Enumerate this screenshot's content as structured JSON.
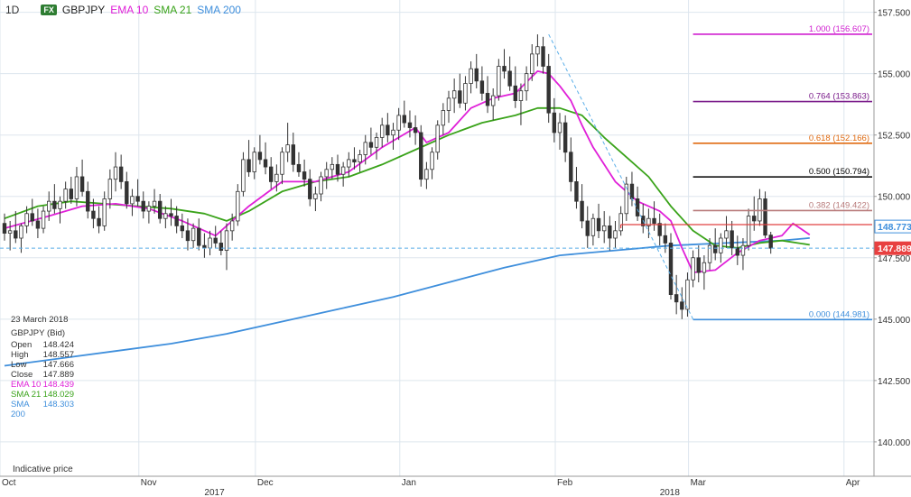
{
  "header": {
    "interval": "1D",
    "badge": "FX",
    "symbol": "GBPJPY",
    "ema10_label": "EMA 10",
    "sma21_label": "SMA 21",
    "sma200_label": "SMA 200"
  },
  "info_panel": {
    "date": "23 March 2018",
    "title": "GBPJPY (Bid)",
    "rows": [
      {
        "label": "Open",
        "value": "148.424"
      },
      {
        "label": "High",
        "value": "148.557"
      },
      {
        "label": "Low",
        "value": "147.666"
      },
      {
        "label": "Close",
        "value": "147.889"
      },
      {
        "label": "EMA 10",
        "value": "148.439"
      },
      {
        "label": "SMA 21",
        "value": "148.029"
      },
      {
        "label": "SMA 200",
        "value": "148.303"
      }
    ]
  },
  "footer_note": "Indicative price",
  "colors": {
    "up_candle": "#ffffff",
    "down_candle": "#333333",
    "ema10": "#e020d8",
    "sma21": "#3aa31a",
    "sma200": "#3f8fdc",
    "grid": "#dde6ee",
    "trend": "#5aaee8",
    "current_price_tag": "#e84040",
    "ema_tag": "#3f8fdc"
  },
  "chart_data": {
    "type": "candlestick",
    "symbol": "GBPJPY",
    "interval": "1D",
    "ylim": [
      138.6,
      158.0
    ],
    "y_ticks": [
      "157.500",
      "155.000",
      "152.500",
      "150.000",
      "147.500",
      "145.000",
      "142.500",
      "140.000"
    ],
    "x_labels": [
      {
        "label": "Oct",
        "x": 0
      },
      {
        "label": "Nov",
        "x": 25
      },
      {
        "label": "Dec",
        "x": 46
      },
      {
        "label": "Jan",
        "x": 72
      },
      {
        "label": "Feb",
        "x": 100
      },
      {
        "label": "Mar",
        "x": 124
      },
      {
        "label": "Apr",
        "x": 152
      }
    ],
    "year_labels": [
      {
        "label": "2017",
        "x": 36
      },
      {
        "label": "2018",
        "x": 118
      }
    ],
    "ohlc": [
      [
        148.9,
        149.3,
        148.2,
        148.5
      ],
      [
        148.5,
        149.0,
        147.8,
        148.6
      ],
      [
        148.6,
        149.4,
        148.1,
        148.3
      ],
      [
        148.3,
        148.9,
        147.7,
        148.8
      ],
      [
        148.8,
        149.6,
        148.5,
        149.3
      ],
      [
        149.3,
        149.9,
        148.8,
        149.0
      ],
      [
        149.0,
        149.5,
        148.3,
        148.7
      ],
      [
        148.7,
        149.6,
        148.5,
        149.4
      ],
      [
        149.4,
        150.2,
        149.0,
        149.8
      ],
      [
        149.8,
        150.5,
        149.3,
        149.5
      ],
      [
        149.5,
        150.0,
        148.9,
        149.8
      ],
      [
        149.8,
        150.6,
        149.5,
        150.3
      ],
      [
        150.3,
        150.8,
        149.7,
        149.9
      ],
      [
        149.9,
        151.2,
        149.6,
        150.8
      ],
      [
        150.8,
        151.5,
        150.0,
        150.2
      ],
      [
        150.2,
        150.6,
        149.1,
        149.4
      ],
      [
        149.4,
        149.9,
        148.7,
        149.1
      ],
      [
        149.1,
        149.6,
        148.5,
        148.8
      ],
      [
        148.8,
        150.2,
        148.6,
        149.9
      ],
      [
        149.9,
        151.1,
        149.5,
        150.7
      ],
      [
        150.7,
        151.8,
        150.2,
        151.2
      ],
      [
        151.2,
        151.7,
        150.3,
        150.6
      ],
      [
        150.6,
        151.0,
        149.5,
        149.7
      ],
      [
        149.7,
        150.3,
        149.2,
        150.0
      ],
      [
        150.0,
        150.7,
        149.6,
        149.8
      ],
      [
        149.8,
        150.2,
        149.1,
        149.4
      ],
      [
        149.4,
        149.8,
        148.9,
        149.6
      ],
      [
        149.6,
        150.3,
        149.3,
        149.8
      ],
      [
        149.8,
        150.1,
        148.9,
        149.1
      ],
      [
        149.1,
        149.6,
        148.7,
        149.3
      ],
      [
        149.3,
        149.9,
        148.8,
        149.2
      ],
      [
        149.2,
        149.6,
        148.5,
        148.8
      ],
      [
        148.8,
        149.3,
        148.3,
        148.6
      ],
      [
        148.6,
        149.1,
        147.8,
        148.2
      ],
      [
        148.2,
        148.9,
        147.9,
        148.7
      ],
      [
        148.7,
        149.1,
        147.8,
        148.0
      ],
      [
        148.0,
        148.5,
        147.5,
        147.9
      ],
      [
        147.9,
        148.6,
        147.6,
        148.3
      ],
      [
        148.3,
        148.8,
        147.9,
        148.1
      ],
      [
        148.1,
        148.6,
        147.6,
        147.8
      ],
      [
        147.8,
        148.9,
        147.0,
        148.6
      ],
      [
        148.6,
        149.3,
        148.2,
        149.0
      ],
      [
        149.0,
        150.5,
        148.8,
        150.2
      ],
      [
        150.2,
        151.8,
        150.0,
        151.5
      ],
      [
        151.5,
        152.3,
        150.8,
        151.0
      ],
      [
        151.0,
        152.0,
        150.7,
        151.8
      ],
      [
        151.8,
        152.5,
        151.3,
        151.5
      ],
      [
        151.5,
        152.2,
        150.9,
        151.2
      ],
      [
        151.2,
        151.6,
        150.3,
        150.6
      ],
      [
        150.6,
        151.3,
        150.2,
        150.9
      ],
      [
        150.9,
        152.0,
        150.5,
        151.8
      ],
      [
        151.8,
        153.0,
        151.4,
        152.1
      ],
      [
        152.1,
        152.6,
        151.0,
        151.3
      ],
      [
        151.3,
        151.8,
        150.8,
        151.0
      ],
      [
        151.0,
        151.5,
        150.4,
        150.7
      ],
      [
        150.7,
        151.1,
        149.6,
        149.9
      ],
      [
        149.9,
        150.4,
        149.4,
        150.1
      ],
      [
        150.1,
        151.0,
        149.8,
        150.8
      ],
      [
        150.8,
        151.4,
        150.3,
        151.1
      ],
      [
        151.1,
        151.6,
        150.7,
        151.3
      ],
      [
        151.3,
        151.7,
        150.6,
        150.9
      ],
      [
        150.9,
        151.4,
        150.4,
        151.2
      ],
      [
        151.2,
        151.8,
        150.8,
        151.5
      ],
      [
        151.5,
        152.0,
        151.1,
        151.4
      ],
      [
        151.4,
        151.9,
        151.0,
        151.7
      ],
      [
        151.7,
        152.5,
        151.3,
        152.2
      ],
      [
        152.2,
        152.8,
        151.7,
        152.0
      ],
      [
        152.0,
        152.6,
        151.5,
        152.4
      ],
      [
        152.4,
        153.2,
        152.0,
        152.9
      ],
      [
        152.9,
        153.4,
        152.2,
        152.5
      ],
      [
        152.5,
        153.0,
        151.9,
        152.7
      ],
      [
        152.7,
        153.6,
        152.3,
        153.3
      ],
      [
        153.3,
        153.9,
        152.8,
        153.0
      ],
      [
        153.0,
        153.5,
        152.4,
        152.8
      ],
      [
        152.8,
        153.3,
        152.1,
        152.6
      ],
      [
        152.6,
        152.9,
        150.4,
        150.7
      ],
      [
        150.7,
        151.4,
        150.3,
        151.1
      ],
      [
        151.1,
        152.0,
        150.7,
        151.8
      ],
      [
        151.8,
        153.1,
        151.5,
        152.9
      ],
      [
        152.9,
        153.8,
        152.5,
        153.5
      ],
      [
        153.5,
        154.3,
        153.0,
        154.0
      ],
      [
        154.0,
        154.8,
        153.4,
        154.3
      ],
      [
        154.3,
        155.0,
        153.6,
        153.8
      ],
      [
        153.8,
        154.9,
        153.5,
        154.6
      ],
      [
        154.6,
        155.5,
        154.2,
        155.2
      ],
      [
        155.2,
        155.8,
        154.4,
        154.7
      ],
      [
        154.7,
        155.3,
        153.9,
        154.2
      ],
      [
        154.2,
        154.9,
        153.4,
        153.7
      ],
      [
        153.7,
        154.4,
        153.1,
        154.1
      ],
      [
        154.1,
        155.6,
        153.9,
        155.3
      ],
      [
        155.3,
        156.0,
        154.8,
        155.1
      ],
      [
        155.1,
        155.7,
        154.3,
        154.5
      ],
      [
        154.5,
        155.3,
        153.6,
        153.9
      ],
      [
        153.9,
        154.6,
        152.9,
        154.3
      ],
      [
        154.3,
        155.3,
        153.9,
        155.0
      ],
      [
        155.0,
        156.2,
        154.7,
        155.8
      ],
      [
        155.8,
        156.6,
        155.3,
        156.1
      ],
      [
        156.1,
        156.5,
        155.0,
        155.3
      ],
      [
        155.3,
        155.8,
        153.0,
        153.4
      ],
      [
        153.4,
        154.0,
        152.2,
        152.6
      ],
      [
        152.6,
        153.4,
        151.9,
        153.0
      ],
      [
        153.0,
        153.3,
        151.4,
        151.8
      ],
      [
        151.8,
        152.4,
        150.2,
        150.6
      ],
      [
        150.6,
        151.2,
        149.5,
        149.8
      ],
      [
        149.8,
        150.5,
        148.7,
        149.0
      ],
      [
        149.0,
        149.6,
        147.9,
        148.4
      ],
      [
        148.4,
        149.3,
        148.0,
        149.1
      ],
      [
        149.1,
        149.7,
        148.3,
        148.6
      ],
      [
        148.6,
        149.4,
        148.1,
        148.8
      ],
      [
        148.8,
        149.2,
        147.8,
        148.3
      ],
      [
        148.3,
        149.0,
        147.9,
        148.6
      ],
      [
        148.6,
        149.6,
        148.4,
        149.3
      ],
      [
        149.3,
        150.8,
        149.0,
        150.5
      ],
      [
        150.5,
        151.0,
        149.6,
        149.9
      ],
      [
        149.9,
        150.4,
        149.0,
        149.2
      ],
      [
        149.2,
        149.7,
        148.5,
        148.8
      ],
      [
        148.8,
        149.5,
        148.3,
        149.1
      ],
      [
        149.1,
        149.8,
        148.6,
        148.9
      ],
      [
        148.9,
        149.3,
        148.0,
        148.4
      ],
      [
        148.4,
        148.9,
        147.7,
        148.1
      ],
      [
        148.1,
        148.5,
        145.8,
        146.0
      ],
      [
        146.0,
        146.8,
        145.2,
        145.7
      ],
      [
        145.7,
        146.3,
        145.0,
        145.4
      ],
      [
        145.4,
        146.9,
        145.1,
        146.6
      ],
      [
        146.6,
        147.8,
        146.3,
        147.5
      ],
      [
        147.5,
        148.0,
        146.5,
        146.9
      ],
      [
        146.9,
        147.6,
        146.2,
        147.3
      ],
      [
        147.3,
        148.3,
        147.0,
        148.0
      ],
      [
        148.0,
        148.7,
        147.4,
        147.7
      ],
      [
        147.7,
        148.5,
        147.3,
        148.3
      ],
      [
        148.3,
        149.2,
        147.9,
        148.6
      ],
      [
        148.6,
        149.0,
        147.6,
        147.9
      ],
      [
        147.9,
        148.4,
        147.2,
        147.6
      ],
      [
        147.6,
        148.3,
        147.0,
        148.0
      ],
      [
        148.0,
        149.5,
        147.8,
        149.2
      ],
      [
        149.2,
        150.0,
        148.6,
        149.0
      ],
      [
        149.0,
        150.3,
        148.8,
        149.9
      ],
      [
        149.9,
        150.2,
        148.3,
        148.42
      ],
      [
        148.424,
        148.557,
        147.666,
        147.889
      ]
    ],
    "ema10": [
      [
        0,
        148.7
      ],
      [
        8,
        149.2
      ],
      [
        14,
        149.6
      ],
      [
        20,
        149.7
      ],
      [
        26,
        149.5
      ],
      [
        32,
        149.0
      ],
      [
        38,
        148.4
      ],
      [
        44,
        149.6
      ],
      [
        50,
        150.6
      ],
      [
        56,
        150.6
      ],
      [
        62,
        151.0
      ],
      [
        68,
        152.0
      ],
      [
        74,
        152.8
      ],
      [
        76,
        152.2
      ],
      [
        80,
        152.6
      ],
      [
        84,
        153.6
      ],
      [
        88,
        154.0
      ],
      [
        92,
        154.2
      ],
      [
        96,
        155.1
      ],
      [
        98,
        155.0
      ],
      [
        100,
        154.5
      ],
      [
        102,
        153.9
      ],
      [
        104,
        152.9
      ],
      [
        106,
        152.0
      ],
      [
        110,
        150.6
      ],
      [
        114,
        149.8
      ],
      [
        118,
        149.4
      ],
      [
        120,
        149.0
      ],
      [
        122,
        147.9
      ],
      [
        124,
        146.9
      ],
      [
        128,
        147.0
      ],
      [
        132,
        147.7
      ],
      [
        136,
        148.2
      ],
      [
        140,
        148.4
      ],
      [
        142,
        148.9
      ],
      [
        145,
        148.439
      ]
    ],
    "sma21": [
      [
        0,
        149.1
      ],
      [
        6,
        149.6
      ],
      [
        12,
        149.8
      ],
      [
        18,
        149.7
      ],
      [
        24,
        149.6
      ],
      [
        30,
        149.5
      ],
      [
        36,
        149.3
      ],
      [
        40,
        149.0
      ],
      [
        44,
        149.4
      ],
      [
        50,
        150.2
      ],
      [
        56,
        150.6
      ],
      [
        62,
        150.8
      ],
      [
        68,
        151.3
      ],
      [
        74,
        151.9
      ],
      [
        80,
        152.5
      ],
      [
        86,
        153.0
      ],
      [
        92,
        153.3
      ],
      [
        96,
        153.6
      ],
      [
        100,
        153.6
      ],
      [
        104,
        153.3
      ],
      [
        108,
        152.4
      ],
      [
        112,
        151.6
      ],
      [
        116,
        150.8
      ],
      [
        120,
        149.6
      ],
      [
        124,
        148.6
      ],
      [
        128,
        148.0
      ],
      [
        132,
        147.9
      ],
      [
        136,
        148.1
      ],
      [
        140,
        148.2
      ],
      [
        145,
        148.029
      ]
    ],
    "sma200": [
      [
        0,
        143.1
      ],
      [
        10,
        143.4
      ],
      [
        20,
        143.7
      ],
      [
        30,
        144.0
      ],
      [
        40,
        144.4
      ],
      [
        50,
        144.9
      ],
      [
        60,
        145.4
      ],
      [
        70,
        145.9
      ],
      [
        80,
        146.5
      ],
      [
        90,
        147.1
      ],
      [
        100,
        147.6
      ],
      [
        110,
        147.8
      ],
      [
        120,
        148.0
      ],
      [
        130,
        148.1
      ],
      [
        140,
        148.2
      ],
      [
        145,
        148.303
      ]
    ],
    "fibonacci": [
      {
        "level": "1.000",
        "price": 156.607,
        "label": "1.000 (156.607)",
        "color": "#d020d0"
      },
      {
        "level": "0.764",
        "price": 153.863,
        "label": "0.764 (153.863)",
        "color": "#7a1a8a"
      },
      {
        "level": "0.618",
        "price": 152.166,
        "label": "0.618 (152.166)",
        "color": "#e06a10"
      },
      {
        "level": "0.500",
        "price": 150.794,
        "label": "0.500 (150.794)",
        "color": "#000000"
      },
      {
        "level": "0.382",
        "price": 149.422,
        "label": "0.382 (149.422)",
        "color": "#b87a7a"
      },
      {
        "level": "0.000",
        "price": 144.981,
        "label": "0.000 (144.981)",
        "color": "#3f8fdc"
      }
    ],
    "fib_start_index": 124,
    "fib_end_index": 152,
    "red_level": {
      "price": 148.85,
      "start_index": 111
    },
    "trend_line": {
      "from": [
        98,
        156.6
      ],
      "to": [
        124,
        145.0
      ]
    },
    "current_price_line": 147.889,
    "price_tags": [
      {
        "label": "148.773",
        "price": 148.773,
        "color": "#3f8fdc"
      },
      {
        "label": "147.889",
        "price": 147.889,
        "color": "#e84040"
      }
    ]
  }
}
